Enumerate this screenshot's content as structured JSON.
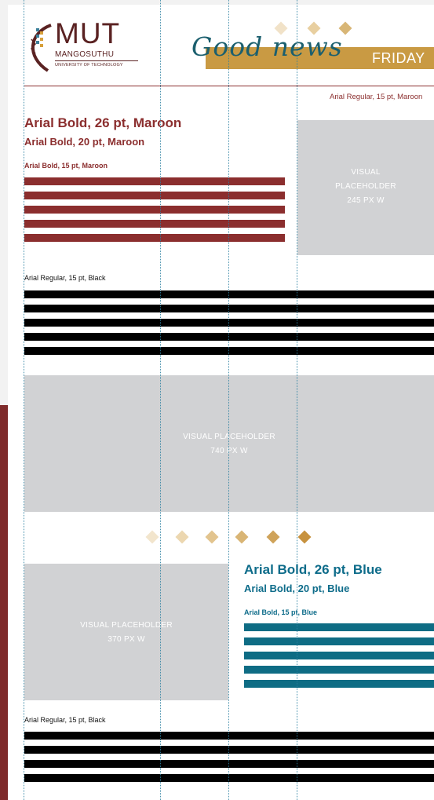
{
  "brand": {
    "logo_text": "MUT",
    "logo_subtitle": "MANGOSUTHU",
    "logo_tagline": "UNIVERSITY OF TECHNOLOGY",
    "banner_script": "Good news",
    "banner_day": "FRIDAY"
  },
  "colors": {
    "maroon": "#8b2e2e",
    "blue": "#0e6c8a",
    "gold": "#c99a43",
    "placeholder": "#d1d2d4",
    "black": "#000000"
  },
  "top_section": {
    "meta_label": "Arial Regular, 15 pt, Maroon",
    "heading_large": "Arial Bold, 26 pt, Maroon",
    "heading_medium": "Arial Bold, 20 pt, Maroon",
    "heading_small": "Arial Bold, 15 pt, Maroon",
    "visual_line1": "VISUAL",
    "visual_line2": "PLACEHOLDER",
    "visual_line3": "245 PX W",
    "body_label": "Arial Regular, 15 pt, Black"
  },
  "wide_visual": {
    "line1": "VISUAL PLACEHOLDER",
    "line2": "740 PX W"
  },
  "bottom_section": {
    "visual_line1": "VISUAL PLACEHOLDER",
    "visual_line2": "370 PX W",
    "heading_large": "Arial Bold, 26 pt, Blue",
    "heading_medium": "Arial Bold, 20 pt, Blue",
    "heading_small": "Arial Bold, 15 pt, Blue",
    "body_label": "Arial Regular, 15 pt, Black"
  }
}
